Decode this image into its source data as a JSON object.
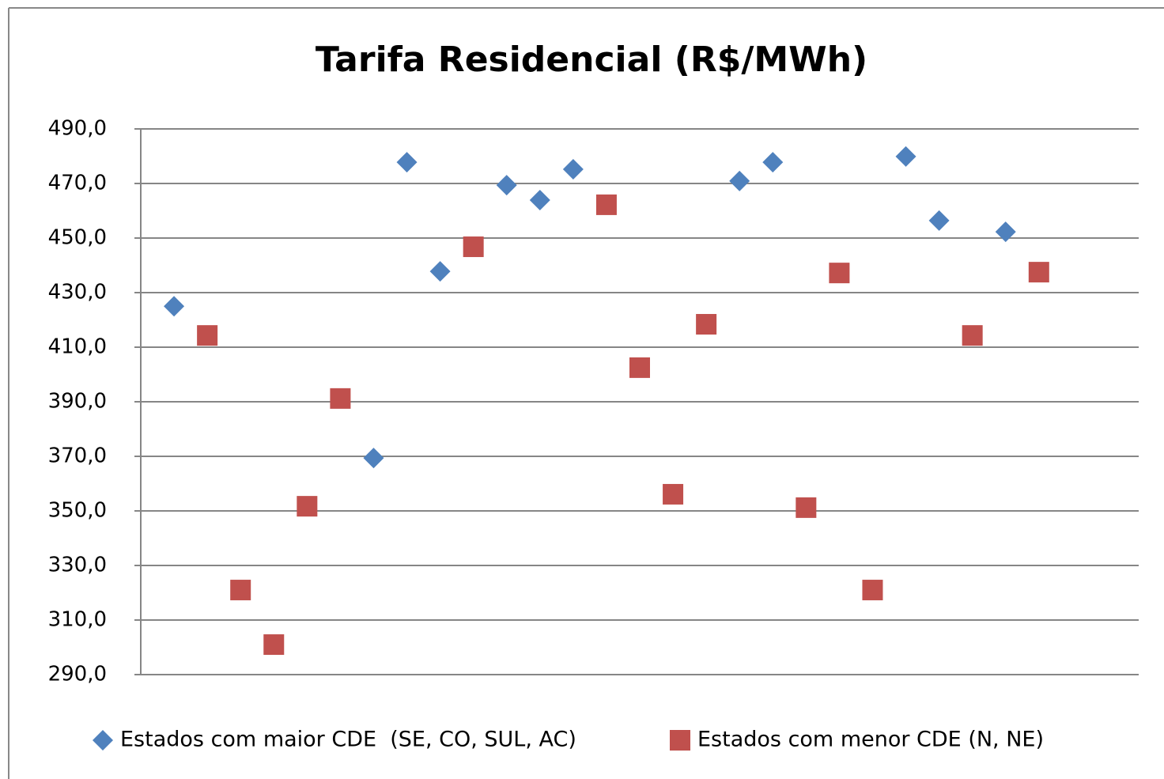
{
  "chart_data": {
    "type": "scatter",
    "title": "Tarifa Residencial (R$/MWh)",
    "xlim": [
      0,
      30
    ],
    "ylim": [
      290,
      490
    ],
    "yticks": [
      {
        "value": 290,
        "label": "290,0"
      },
      {
        "value": 310,
        "label": "310,0"
      },
      {
        "value": 330,
        "label": "330,0"
      },
      {
        "value": 350,
        "label": "350,0"
      },
      {
        "value": 370,
        "label": "370,0"
      },
      {
        "value": 390,
        "label": "390,0"
      },
      {
        "value": 410,
        "label": "410,0"
      },
      {
        "value": 430,
        "label": "430,0"
      },
      {
        "value": 450,
        "label": "450,0"
      },
      {
        "value": 470,
        "label": "470,0"
      },
      {
        "value": 490,
        "label": "490,0"
      }
    ],
    "grid": true,
    "legend": "bottom",
    "series": [
      {
        "name": "Estados com maior CDE  (SE, CO, SUL, AC)",
        "color": "#4f81bd",
        "marker": "diamond",
        "x": [
          1,
          7,
          8,
          9,
          11,
          12,
          13,
          18,
          19,
          23,
          24,
          26
        ],
        "values": [
          425.0,
          369.4,
          477.8,
          437.8,
          469.4,
          463.9,
          475.2,
          470.9,
          477.8,
          479.9,
          456.4,
          452.3
        ]
      },
      {
        "name": "Estados com menor CDE (N, NE)",
        "color": "#c0504d",
        "marker": "square",
        "x": [
          2,
          3,
          4,
          5,
          6,
          10,
          14,
          15,
          16,
          17,
          20,
          21,
          22,
          25,
          27
        ],
        "values": [
          414.3,
          321.0,
          301.0,
          351.7,
          391.2,
          446.8,
          462.2,
          402.5,
          356.1,
          418.4,
          351.2,
          437.2,
          321.0,
          414.3,
          437.5
        ]
      }
    ]
  }
}
